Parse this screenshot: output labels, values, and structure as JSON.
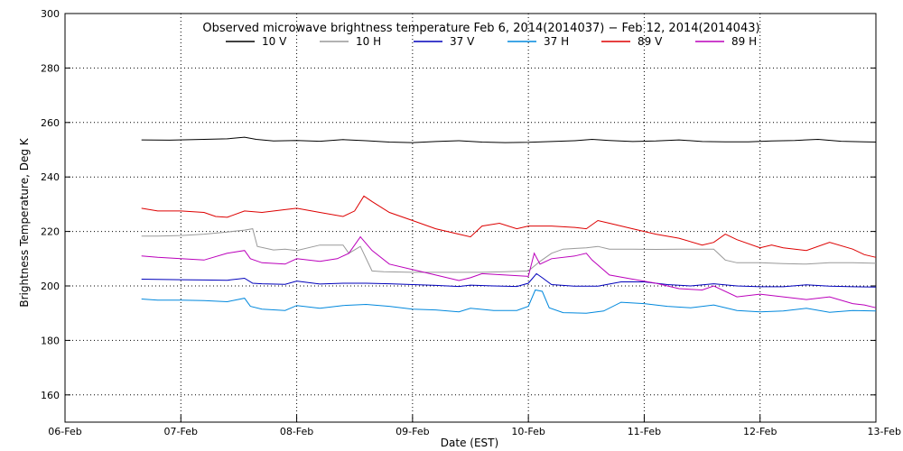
{
  "chart_data": {
    "type": "line",
    "title": "Observed microwave brightness temperature Feb  6, 2014(2014037) − Feb 12, 2014(2014043)",
    "xlabel": "Date (EST)",
    "ylabel": "Brightness Temperature, Deg K",
    "ylim": [
      150,
      300
    ],
    "yticks": [
      160,
      180,
      200,
      220,
      240,
      260,
      280,
      300
    ],
    "xlim": [
      "06-Feb",
      "13-Feb"
    ],
    "xticks": [
      "06-Feb",
      "07-Feb",
      "08-Feb",
      "09-Feb",
      "10-Feb",
      "11-Feb",
      "12-Feb",
      "13-Feb"
    ],
    "grid": true,
    "legend_placement": "top-center",
    "x_unit": "day offset from 06-Feb 00:00",
    "series": [
      {
        "name": "10 V",
        "color": "#000000",
        "points": [
          [
            0.66,
            253.6
          ],
          [
            0.9,
            253.5
          ],
          [
            1.2,
            253.8
          ],
          [
            1.4,
            254.0
          ],
          [
            1.55,
            254.6
          ],
          [
            1.65,
            253.8
          ],
          [
            1.8,
            253.2
          ],
          [
            2.0,
            253.4
          ],
          [
            2.2,
            253.1
          ],
          [
            2.4,
            253.7
          ],
          [
            2.6,
            253.3
          ],
          [
            2.8,
            252.8
          ],
          [
            3.0,
            252.6
          ],
          [
            3.2,
            253.0
          ],
          [
            3.4,
            253.3
          ],
          [
            3.6,
            252.8
          ],
          [
            3.8,
            252.6
          ],
          [
            4.0,
            252.7
          ],
          [
            4.2,
            253.0
          ],
          [
            4.4,
            253.3
          ],
          [
            4.55,
            253.8
          ],
          [
            4.7,
            253.4
          ],
          [
            4.9,
            253.0
          ],
          [
            5.1,
            253.2
          ],
          [
            5.3,
            253.6
          ],
          [
            5.5,
            253.0
          ],
          [
            5.7,
            252.9
          ],
          [
            5.9,
            252.9
          ],
          [
            6.1,
            253.2
          ],
          [
            6.3,
            253.4
          ],
          [
            6.5,
            253.8
          ],
          [
            6.7,
            253.1
          ],
          [
            6.9,
            252.9
          ],
          [
            7.0,
            252.8
          ]
        ]
      },
      {
        "name": "10 H",
        "color": "#999999",
        "points": [
          [
            0.66,
            218.3
          ],
          [
            0.8,
            218.3
          ],
          [
            1.0,
            218.5
          ],
          [
            1.2,
            219.0
          ],
          [
            1.4,
            219.8
          ],
          [
            1.55,
            220.5
          ],
          [
            1.62,
            221.0
          ],
          [
            1.66,
            214.5
          ],
          [
            1.8,
            213.2
          ],
          [
            1.9,
            213.5
          ],
          [
            2.0,
            213.0
          ],
          [
            2.2,
            215.0
          ],
          [
            2.4,
            215.0
          ],
          [
            2.45,
            212.0
          ],
          [
            2.55,
            214.5
          ],
          [
            2.65,
            205.5
          ],
          [
            2.75,
            205.2
          ],
          [
            3.0,
            205.0
          ],
          [
            3.2,
            205.0
          ],
          [
            3.4,
            205.0
          ],
          [
            3.6,
            205.0
          ],
          [
            3.8,
            205.2
          ],
          [
            4.0,
            205.5
          ],
          [
            4.1,
            209.0
          ],
          [
            4.2,
            212.0
          ],
          [
            4.3,
            213.5
          ],
          [
            4.5,
            214.0
          ],
          [
            4.6,
            214.5
          ],
          [
            4.7,
            213.5
          ],
          [
            4.9,
            213.5
          ],
          [
            5.1,
            213.4
          ],
          [
            5.3,
            213.5
          ],
          [
            5.5,
            213.5
          ],
          [
            5.6,
            213.5
          ],
          [
            5.7,
            209.5
          ],
          [
            5.8,
            208.5
          ],
          [
            6.0,
            208.5
          ],
          [
            6.2,
            208.2
          ],
          [
            6.4,
            208.0
          ],
          [
            6.6,
            208.5
          ],
          [
            6.8,
            208.5
          ],
          [
            7.0,
            208.3
          ]
        ]
      },
      {
        "name": "37 V",
        "color": "#0000bb",
        "points": [
          [
            0.66,
            202.5
          ],
          [
            0.8,
            202.4
          ],
          [
            1.0,
            202.3
          ],
          [
            1.2,
            202.2
          ],
          [
            1.4,
            202.1
          ],
          [
            1.55,
            202.8
          ],
          [
            1.62,
            201.0
          ],
          [
            1.7,
            200.8
          ],
          [
            1.9,
            200.6
          ],
          [
            2.0,
            201.8
          ],
          [
            2.2,
            200.7
          ],
          [
            2.4,
            201.0
          ],
          [
            2.6,
            201.0
          ],
          [
            2.8,
            200.8
          ],
          [
            3.0,
            200.5
          ],
          [
            3.2,
            200.2
          ],
          [
            3.4,
            199.8
          ],
          [
            3.5,
            200.3
          ],
          [
            3.7,
            200.0
          ],
          [
            3.9,
            199.8
          ],
          [
            4.0,
            201.0
          ],
          [
            4.07,
            204.5
          ],
          [
            4.12,
            203.0
          ],
          [
            4.2,
            200.5
          ],
          [
            4.4,
            199.9
          ],
          [
            4.6,
            199.9
          ],
          [
            4.8,
            201.5
          ],
          [
            5.0,
            201.5
          ],
          [
            5.2,
            200.5
          ],
          [
            5.4,
            200.0
          ],
          [
            5.6,
            200.8
          ],
          [
            5.8,
            200.0
          ],
          [
            6.0,
            199.7
          ],
          [
            6.2,
            199.7
          ],
          [
            6.4,
            200.4
          ],
          [
            6.6,
            199.9
          ],
          [
            6.8,
            199.7
          ],
          [
            7.0,
            199.6
          ]
        ]
      },
      {
        "name": "37 H",
        "color": "#0088dd",
        "points": [
          [
            0.66,
            195.2
          ],
          [
            0.8,
            194.8
          ],
          [
            1.0,
            194.8
          ],
          [
            1.2,
            194.6
          ],
          [
            1.4,
            194.2
          ],
          [
            1.55,
            195.5
          ],
          [
            1.6,
            192.5
          ],
          [
            1.7,
            191.5
          ],
          [
            1.9,
            191.0
          ],
          [
            2.0,
            192.8
          ],
          [
            2.2,
            191.8
          ],
          [
            2.4,
            192.8
          ],
          [
            2.6,
            193.2
          ],
          [
            2.8,
            192.5
          ],
          [
            3.0,
            191.5
          ],
          [
            3.2,
            191.2
          ],
          [
            3.4,
            190.5
          ],
          [
            3.5,
            191.8
          ],
          [
            3.7,
            191.0
          ],
          [
            3.9,
            191.0
          ],
          [
            4.0,
            192.5
          ],
          [
            4.06,
            198.5
          ],
          [
            4.12,
            198.0
          ],
          [
            4.18,
            192.0
          ],
          [
            4.3,
            190.2
          ],
          [
            4.5,
            190.0
          ],
          [
            4.65,
            190.8
          ],
          [
            4.8,
            194.0
          ],
          [
            5.0,
            193.5
          ],
          [
            5.2,
            192.5
          ],
          [
            5.4,
            192.0
          ],
          [
            5.6,
            193.0
          ],
          [
            5.8,
            191.0
          ],
          [
            6.0,
            190.5
          ],
          [
            6.2,
            190.8
          ],
          [
            6.4,
            191.8
          ],
          [
            6.6,
            190.3
          ],
          [
            6.8,
            191.0
          ],
          [
            7.0,
            190.8
          ]
        ]
      },
      {
        "name": "89 V",
        "color": "#dd0000",
        "points": [
          [
            0.66,
            228.5
          ],
          [
            0.8,
            227.5
          ],
          [
            1.0,
            227.5
          ],
          [
            1.2,
            227.0
          ],
          [
            1.3,
            225.5
          ],
          [
            1.4,
            225.2
          ],
          [
            1.55,
            227.5
          ],
          [
            1.7,
            227.0
          ],
          [
            1.9,
            228.0
          ],
          [
            2.0,
            228.5
          ],
          [
            2.2,
            227.0
          ],
          [
            2.4,
            225.5
          ],
          [
            2.5,
            227.5
          ],
          [
            2.58,
            233.0
          ],
          [
            2.65,
            231.0
          ],
          [
            2.8,
            227.0
          ],
          [
            3.0,
            224.0
          ],
          [
            3.2,
            221.0
          ],
          [
            3.4,
            219.0
          ],
          [
            3.5,
            218.0
          ],
          [
            3.6,
            222.0
          ],
          [
            3.75,
            223.0
          ],
          [
            3.9,
            221.0
          ],
          [
            4.0,
            222.0
          ],
          [
            4.2,
            222.0
          ],
          [
            4.4,
            221.5
          ],
          [
            4.5,
            221.0
          ],
          [
            4.6,
            224.0
          ],
          [
            4.7,
            223.0
          ],
          [
            4.9,
            221.0
          ],
          [
            5.1,
            219.0
          ],
          [
            5.3,
            217.5
          ],
          [
            5.5,
            215.0
          ],
          [
            5.6,
            216.0
          ],
          [
            5.7,
            219.0
          ],
          [
            5.8,
            217.0
          ],
          [
            6.0,
            214.0
          ],
          [
            6.1,
            215.0
          ],
          [
            6.2,
            214.0
          ],
          [
            6.4,
            213.0
          ],
          [
            6.6,
            216.0
          ],
          [
            6.8,
            213.5
          ],
          [
            6.9,
            211.5
          ],
          [
            7.0,
            210.5
          ]
        ]
      },
      {
        "name": "89 H",
        "color": "#bb00bb",
        "points": [
          [
            0.66,
            211.0
          ],
          [
            0.8,
            210.5
          ],
          [
            1.0,
            210.0
          ],
          [
            1.2,
            209.5
          ],
          [
            1.4,
            212.0
          ],
          [
            1.55,
            213.0
          ],
          [
            1.6,
            210.0
          ],
          [
            1.7,
            208.5
          ],
          [
            1.9,
            208.0
          ],
          [
            2.0,
            210.0
          ],
          [
            2.2,
            209.0
          ],
          [
            2.35,
            210.0
          ],
          [
            2.45,
            212.0
          ],
          [
            2.55,
            218.0
          ],
          [
            2.65,
            213.0
          ],
          [
            2.8,
            208.0
          ],
          [
            3.0,
            206.0
          ],
          [
            3.2,
            204.0
          ],
          [
            3.4,
            202.0
          ],
          [
            3.5,
            203.0
          ],
          [
            3.6,
            204.5
          ],
          [
            3.8,
            204.0
          ],
          [
            4.0,
            203.5
          ],
          [
            4.05,
            212.0
          ],
          [
            4.1,
            208.0
          ],
          [
            4.2,
            210.0
          ],
          [
            4.4,
            211.0
          ],
          [
            4.5,
            212.0
          ],
          [
            4.55,
            209.5
          ],
          [
            4.7,
            204.0
          ],
          [
            4.9,
            202.5
          ],
          [
            5.1,
            201.0
          ],
          [
            5.3,
            199.0
          ],
          [
            5.5,
            198.5
          ],
          [
            5.6,
            200.0
          ],
          [
            5.8,
            196.0
          ],
          [
            6.0,
            197.0
          ],
          [
            6.2,
            196.0
          ],
          [
            6.4,
            195.0
          ],
          [
            6.6,
            196.0
          ],
          [
            6.8,
            193.5
          ],
          [
            6.9,
            193.0
          ],
          [
            7.0,
            192.0
          ]
        ]
      }
    ]
  }
}
